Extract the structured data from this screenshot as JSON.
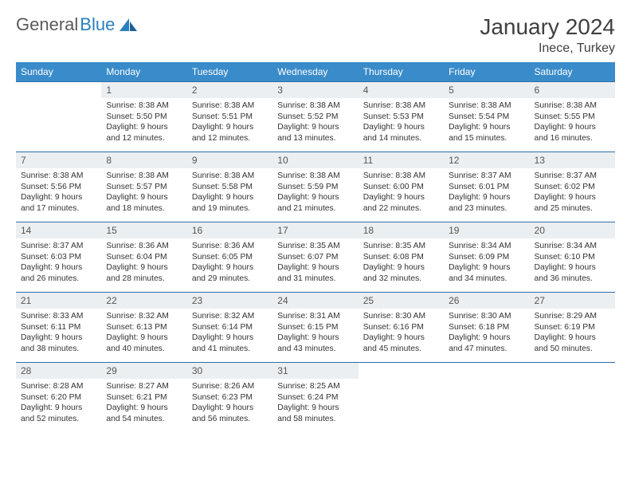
{
  "header": {
    "logo_general": "General",
    "logo_blue": "Blue",
    "month_title": "January 2024",
    "location": "Inece, Turkey"
  },
  "style": {
    "header_bg": "#3a8bc9",
    "header_fg": "#ffffff",
    "daynum_bg": "#eceff1",
    "row_border": "#2f6ea8",
    "text_color": "#333333",
    "font_family": "Arial",
    "dow_fontsize": 12,
    "daynum_fontsize": 12,
    "body_fontsize": 10.3
  },
  "dow": [
    "Sunday",
    "Monday",
    "Tuesday",
    "Wednesday",
    "Thursday",
    "Friday",
    "Saturday"
  ],
  "weeks": [
    [
      null,
      {
        "n": "1",
        "sr": "Sunrise: 8:38 AM",
        "ss": "Sunset: 5:50 PM",
        "d1": "Daylight: 9 hours",
        "d2": "and 12 minutes."
      },
      {
        "n": "2",
        "sr": "Sunrise: 8:38 AM",
        "ss": "Sunset: 5:51 PM",
        "d1": "Daylight: 9 hours",
        "d2": "and 12 minutes."
      },
      {
        "n": "3",
        "sr": "Sunrise: 8:38 AM",
        "ss": "Sunset: 5:52 PM",
        "d1": "Daylight: 9 hours",
        "d2": "and 13 minutes."
      },
      {
        "n": "4",
        "sr": "Sunrise: 8:38 AM",
        "ss": "Sunset: 5:53 PM",
        "d1": "Daylight: 9 hours",
        "d2": "and 14 minutes."
      },
      {
        "n": "5",
        "sr": "Sunrise: 8:38 AM",
        "ss": "Sunset: 5:54 PM",
        "d1": "Daylight: 9 hours",
        "d2": "and 15 minutes."
      },
      {
        "n": "6",
        "sr": "Sunrise: 8:38 AM",
        "ss": "Sunset: 5:55 PM",
        "d1": "Daylight: 9 hours",
        "d2": "and 16 minutes."
      }
    ],
    [
      {
        "n": "7",
        "sr": "Sunrise: 8:38 AM",
        "ss": "Sunset: 5:56 PM",
        "d1": "Daylight: 9 hours",
        "d2": "and 17 minutes."
      },
      {
        "n": "8",
        "sr": "Sunrise: 8:38 AM",
        "ss": "Sunset: 5:57 PM",
        "d1": "Daylight: 9 hours",
        "d2": "and 18 minutes."
      },
      {
        "n": "9",
        "sr": "Sunrise: 8:38 AM",
        "ss": "Sunset: 5:58 PM",
        "d1": "Daylight: 9 hours",
        "d2": "and 19 minutes."
      },
      {
        "n": "10",
        "sr": "Sunrise: 8:38 AM",
        "ss": "Sunset: 5:59 PM",
        "d1": "Daylight: 9 hours",
        "d2": "and 21 minutes."
      },
      {
        "n": "11",
        "sr": "Sunrise: 8:38 AM",
        "ss": "Sunset: 6:00 PM",
        "d1": "Daylight: 9 hours",
        "d2": "and 22 minutes."
      },
      {
        "n": "12",
        "sr": "Sunrise: 8:37 AM",
        "ss": "Sunset: 6:01 PM",
        "d1": "Daylight: 9 hours",
        "d2": "and 23 minutes."
      },
      {
        "n": "13",
        "sr": "Sunrise: 8:37 AM",
        "ss": "Sunset: 6:02 PM",
        "d1": "Daylight: 9 hours",
        "d2": "and 25 minutes."
      }
    ],
    [
      {
        "n": "14",
        "sr": "Sunrise: 8:37 AM",
        "ss": "Sunset: 6:03 PM",
        "d1": "Daylight: 9 hours",
        "d2": "and 26 minutes."
      },
      {
        "n": "15",
        "sr": "Sunrise: 8:36 AM",
        "ss": "Sunset: 6:04 PM",
        "d1": "Daylight: 9 hours",
        "d2": "and 28 minutes."
      },
      {
        "n": "16",
        "sr": "Sunrise: 8:36 AM",
        "ss": "Sunset: 6:05 PM",
        "d1": "Daylight: 9 hours",
        "d2": "and 29 minutes."
      },
      {
        "n": "17",
        "sr": "Sunrise: 8:35 AM",
        "ss": "Sunset: 6:07 PM",
        "d1": "Daylight: 9 hours",
        "d2": "and 31 minutes."
      },
      {
        "n": "18",
        "sr": "Sunrise: 8:35 AM",
        "ss": "Sunset: 6:08 PM",
        "d1": "Daylight: 9 hours",
        "d2": "and 32 minutes."
      },
      {
        "n": "19",
        "sr": "Sunrise: 8:34 AM",
        "ss": "Sunset: 6:09 PM",
        "d1": "Daylight: 9 hours",
        "d2": "and 34 minutes."
      },
      {
        "n": "20",
        "sr": "Sunrise: 8:34 AM",
        "ss": "Sunset: 6:10 PM",
        "d1": "Daylight: 9 hours",
        "d2": "and 36 minutes."
      }
    ],
    [
      {
        "n": "21",
        "sr": "Sunrise: 8:33 AM",
        "ss": "Sunset: 6:11 PM",
        "d1": "Daylight: 9 hours",
        "d2": "and 38 minutes."
      },
      {
        "n": "22",
        "sr": "Sunrise: 8:32 AM",
        "ss": "Sunset: 6:13 PM",
        "d1": "Daylight: 9 hours",
        "d2": "and 40 minutes."
      },
      {
        "n": "23",
        "sr": "Sunrise: 8:32 AM",
        "ss": "Sunset: 6:14 PM",
        "d1": "Daylight: 9 hours",
        "d2": "and 41 minutes."
      },
      {
        "n": "24",
        "sr": "Sunrise: 8:31 AM",
        "ss": "Sunset: 6:15 PM",
        "d1": "Daylight: 9 hours",
        "d2": "and 43 minutes."
      },
      {
        "n": "25",
        "sr": "Sunrise: 8:30 AM",
        "ss": "Sunset: 6:16 PM",
        "d1": "Daylight: 9 hours",
        "d2": "and 45 minutes."
      },
      {
        "n": "26",
        "sr": "Sunrise: 8:30 AM",
        "ss": "Sunset: 6:18 PM",
        "d1": "Daylight: 9 hours",
        "d2": "and 47 minutes."
      },
      {
        "n": "27",
        "sr": "Sunrise: 8:29 AM",
        "ss": "Sunset: 6:19 PM",
        "d1": "Daylight: 9 hours",
        "d2": "and 50 minutes."
      }
    ],
    [
      {
        "n": "28",
        "sr": "Sunrise: 8:28 AM",
        "ss": "Sunset: 6:20 PM",
        "d1": "Daylight: 9 hours",
        "d2": "and 52 minutes."
      },
      {
        "n": "29",
        "sr": "Sunrise: 8:27 AM",
        "ss": "Sunset: 6:21 PM",
        "d1": "Daylight: 9 hours",
        "d2": "and 54 minutes."
      },
      {
        "n": "30",
        "sr": "Sunrise: 8:26 AM",
        "ss": "Sunset: 6:23 PM",
        "d1": "Daylight: 9 hours",
        "d2": "and 56 minutes."
      },
      {
        "n": "31",
        "sr": "Sunrise: 8:25 AM",
        "ss": "Sunset: 6:24 PM",
        "d1": "Daylight: 9 hours",
        "d2": "and 58 minutes."
      },
      null,
      null,
      null
    ]
  ]
}
